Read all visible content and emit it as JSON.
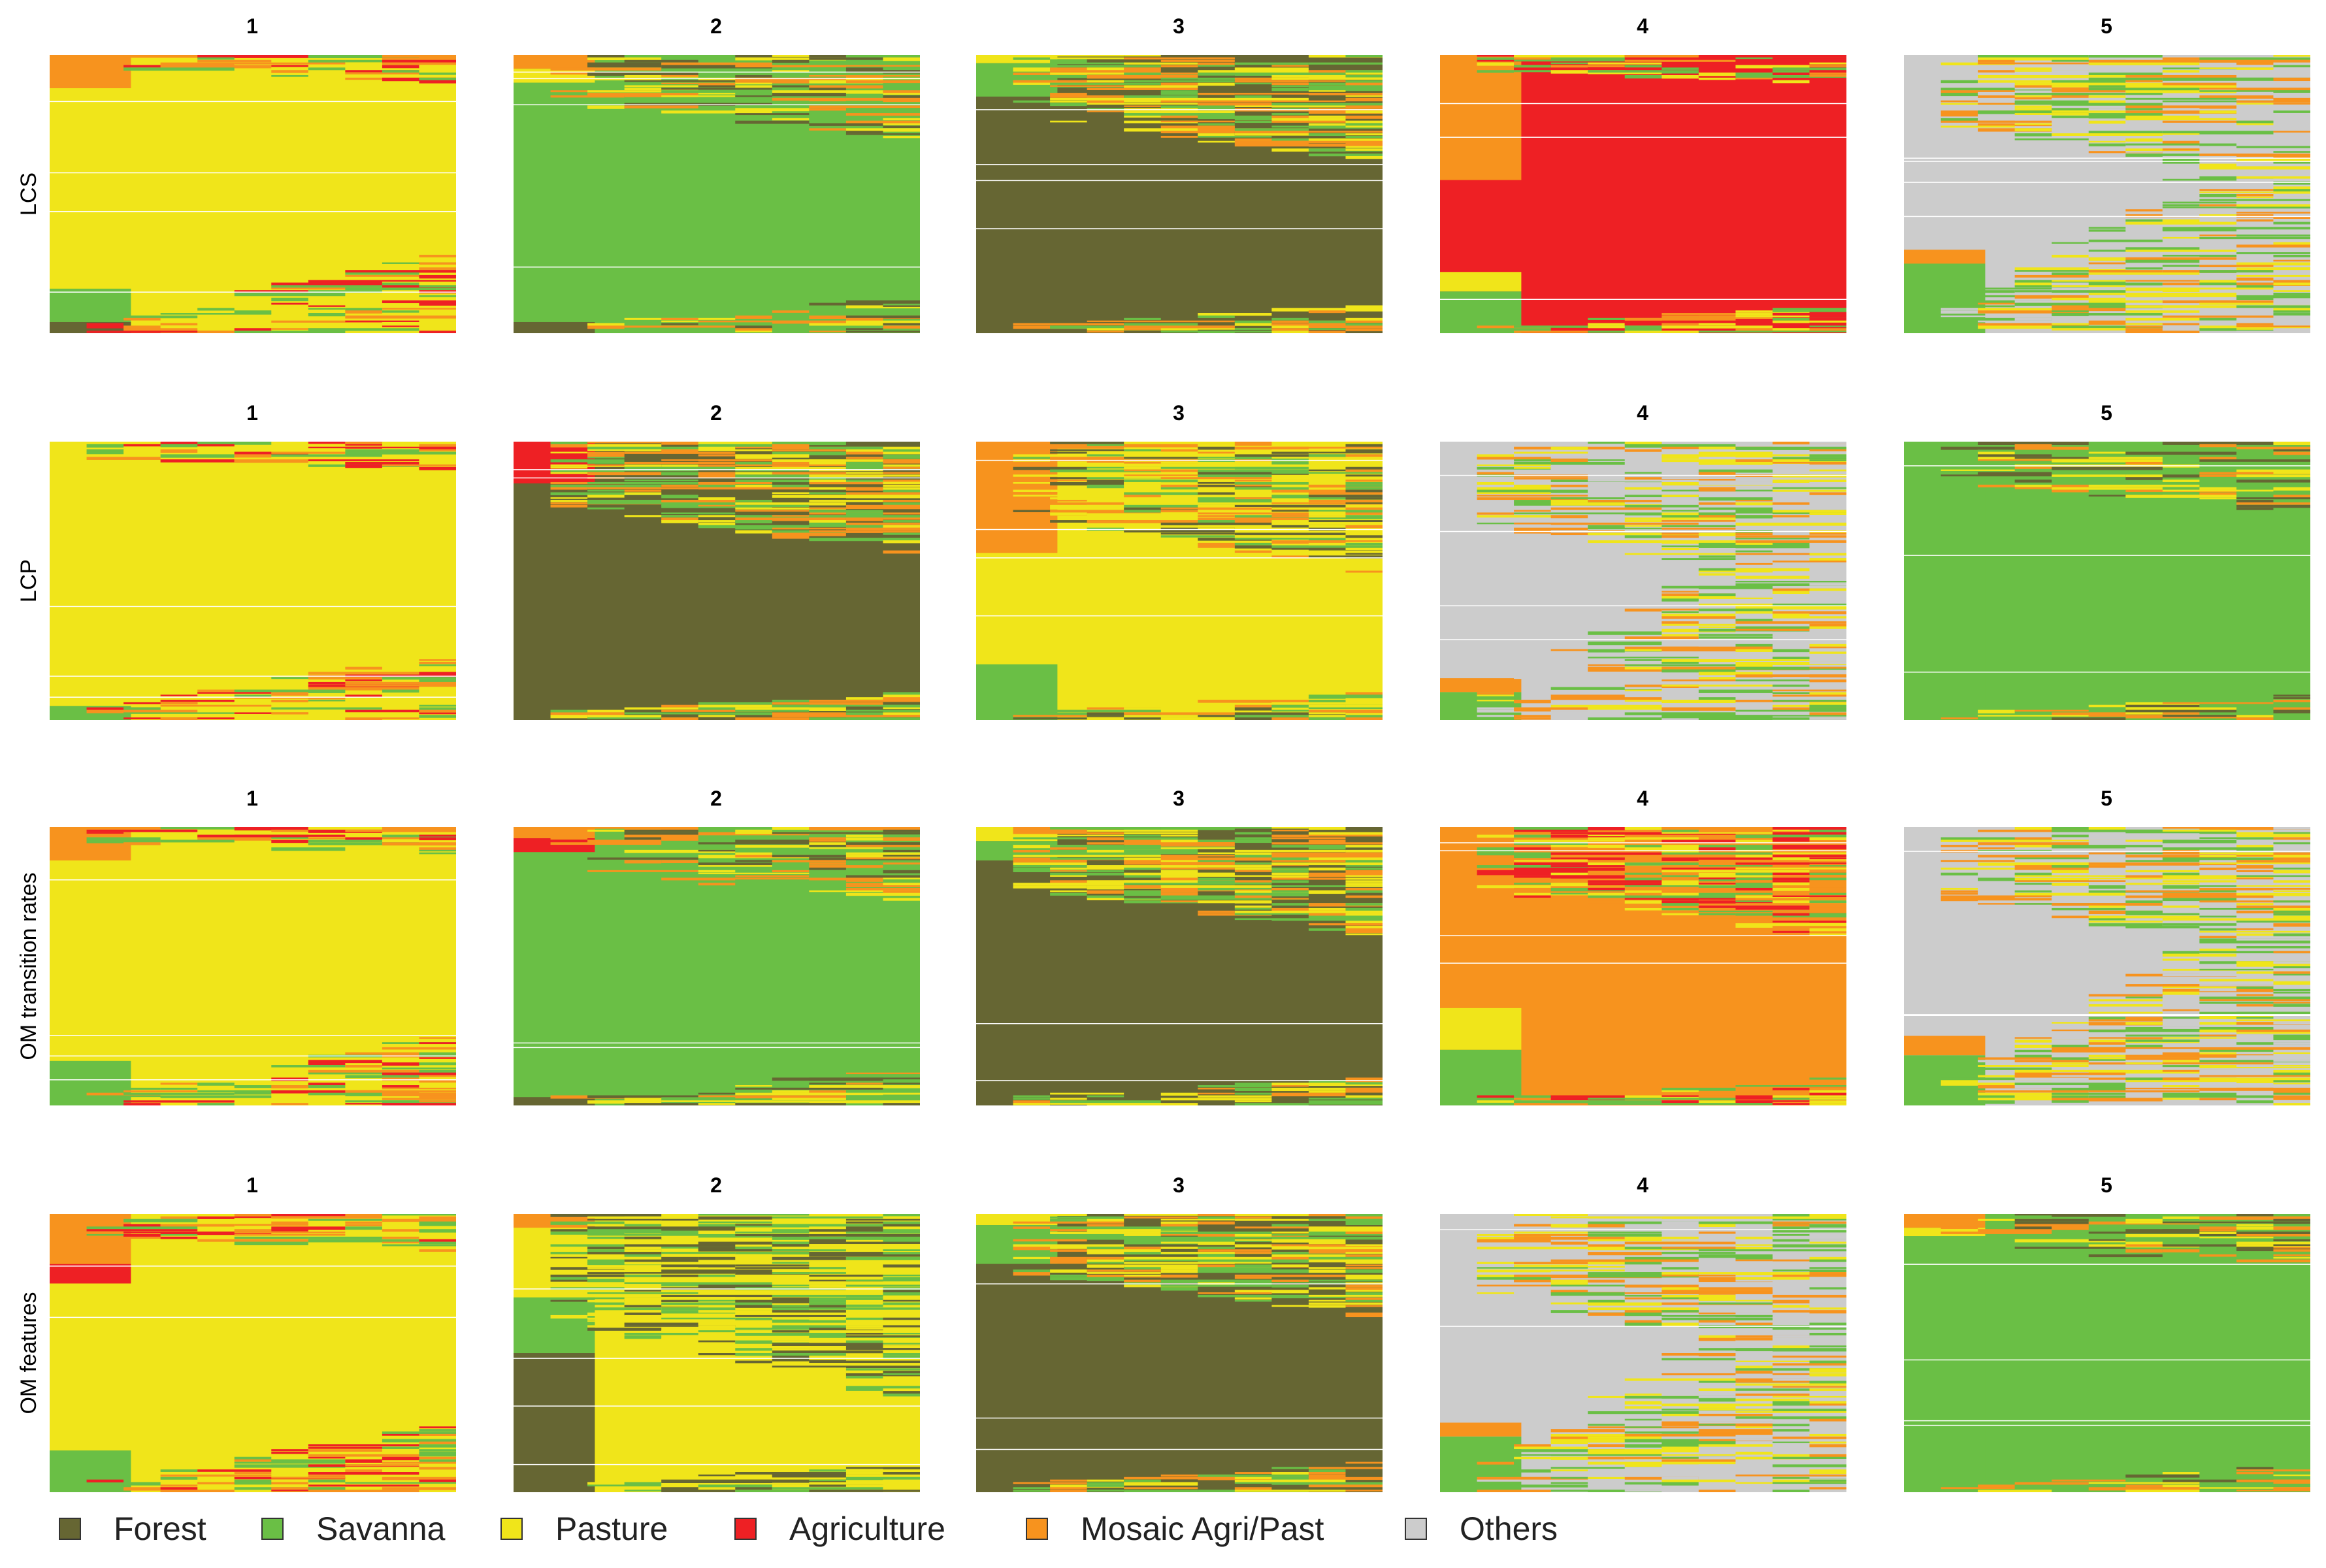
{
  "chart_data": {
    "type": "heatmap",
    "description_kind": "sequence index plots (state sequences per trajectory, sorted)",
    "states": [
      "Forest",
      "Savanna",
      "Pasture",
      "Agriculture",
      "Mosaic Agri/Past",
      "Others"
    ],
    "colors": {
      "Forest": "#666633",
      "Savanna": "#6abf45",
      "Pasture": "#f0e51a",
      "Agriculture": "#ee2024",
      "Mosaic Agri/Past": "#f7931e",
      "Others": "#cccccc"
    },
    "time_steps": 11,
    "rows": [
      {
        "label": "LCS",
        "clusters": [
          {
            "title": "1",
            "dominant": "Pasture",
            "start_states": [
              [
                "Mosaic Agri/Past",
                0.12
              ],
              [
                "Pasture",
                0.72
              ],
              [
                "Savanna",
                0.12
              ],
              [
                "Forest",
                0.04
              ]
            ],
            "noise_states": [
              "Savanna",
              "Mosaic Agri/Past",
              "Agriculture"
            ],
            "change_top": 0.14,
            "change_bottom": 0.8,
            "noise_density": 0.35
          },
          {
            "title": "2",
            "dominant": "Savanna",
            "start_states": [
              [
                "Mosaic Agri/Past",
                0.05
              ],
              [
                "Pasture",
                0.05
              ],
              [
                "Savanna",
                0.86
              ],
              [
                "Forest",
                0.04
              ]
            ],
            "noise_states": [
              "Pasture",
              "Mosaic Agri/Past",
              "Forest"
            ],
            "change_top": 0.45,
            "change_bottom": 0.97,
            "noise_density": 0.3
          },
          {
            "title": "3",
            "dominant": "Forest",
            "start_states": [
              [
                "Pasture",
                0.03
              ],
              [
                "Savanna",
                0.12
              ],
              [
                "Forest",
                0.85
              ]
            ],
            "noise_states": [
              "Savanna",
              "Pasture",
              "Mosaic Agri/Past"
            ],
            "change_top": 0.58,
            "change_bottom": 0.99,
            "noise_density": 0.5
          },
          {
            "title": "4",
            "dominant": "Agriculture",
            "start_states": [
              [
                "Mosaic Agri/Past",
                0.45
              ],
              [
                "Agriculture",
                0.33
              ],
              [
                "Pasture",
                0.07
              ],
              [
                "Savanna",
                0.15
              ]
            ],
            "noise_states": [
              "Agriculture",
              "Mosaic Agri/Past",
              "Pasture",
              "Savanna"
            ],
            "change_top": 0.15,
            "change_bottom": 1.0,
            "noise_density": 0.55
          },
          {
            "title": "5",
            "dominant": "Others",
            "start_states": [
              [
                "Others",
                0.7
              ],
              [
                "Mosaic Agri/Past",
                0.05
              ],
              [
                "Savanna",
                0.25
              ]
            ],
            "noise_states": [
              "Savanna",
              "Pasture",
              "Others",
              "Mosaic Agri/Past"
            ],
            "change_top": 0.7,
            "change_bottom": 0.25,
            "noise_density": 0.45
          }
        ]
      },
      {
        "label": "LCP",
        "clusters": [
          {
            "title": "1",
            "dominant": "Pasture",
            "start_states": [
              [
                "Pasture",
                0.95
              ],
              [
                "Savanna",
                0.05
              ]
            ],
            "noise_states": [
              "Savanna",
              "Mosaic Agri/Past",
              "Agriculture"
            ],
            "change_top": 0.15,
            "change_bottom": 0.85,
            "noise_density": 0.35
          },
          {
            "title": "2",
            "dominant": "Forest",
            "start_states": [
              [
                "Agriculture",
                0.15
              ],
              [
                "Forest",
                0.85
              ]
            ],
            "noise_states": [
              "Savanna",
              "Pasture",
              "Mosaic Agri/Past"
            ],
            "change_top": 0.6,
            "change_bottom": 1.0,
            "noise_density": 0.55
          },
          {
            "title": "3",
            "dominant": "Pasture",
            "start_states": [
              [
                "Mosaic Agri/Past",
                0.4
              ],
              [
                "Pasture",
                0.4
              ],
              [
                "Savanna",
                0.2
              ]
            ],
            "noise_states": [
              "Savanna",
              "Pasture",
              "Mosaic Agri/Past",
              "Forest"
            ],
            "change_top": 0.7,
            "change_bottom": 1.0,
            "noise_density": 0.55
          },
          {
            "title": "4",
            "dominant": "Others",
            "start_states": [
              [
                "Others",
                0.85
              ],
              [
                "Mosaic Agri/Past",
                0.05
              ],
              [
                "Savanna",
                0.1
              ]
            ],
            "noise_states": [
              "Savanna",
              "Pasture",
              "Others",
              "Mosaic Agri/Past"
            ],
            "change_top": 0.8,
            "change_bottom": 0.2,
            "noise_density": 0.4
          },
          {
            "title": "5",
            "dominant": "Savanna",
            "start_states": [
              [
                "Savanna",
                1.0
              ]
            ],
            "noise_states": [
              "Pasture",
              "Mosaic Agri/Past",
              "Forest"
            ],
            "change_top": 0.38,
            "change_bottom": 1.0,
            "noise_density": 0.3
          }
        ]
      },
      {
        "label": "OM transition rates",
        "clusters": [
          {
            "title": "1",
            "dominant": "Pasture",
            "start_states": [
              [
                "Mosaic Agri/Past",
                0.12
              ],
              [
                "Pasture",
                0.72
              ],
              [
                "Savanna",
                0.16
              ]
            ],
            "noise_states": [
              "Savanna",
              "Mosaic Agri/Past",
              "Agriculture"
            ],
            "change_top": 0.14,
            "change_bottom": 0.82,
            "noise_density": 0.35
          },
          {
            "title": "2",
            "dominant": "Savanna",
            "start_states": [
              [
                "Mosaic Agri/Past",
                0.04
              ],
              [
                "Agriculture",
                0.05
              ],
              [
                "Savanna",
                0.88
              ],
              [
                "Forest",
                0.03
              ]
            ],
            "noise_states": [
              "Pasture",
              "Mosaic Agri/Past",
              "Forest"
            ],
            "change_top": 0.4,
            "change_bottom": 0.97,
            "noise_density": 0.3
          },
          {
            "title": "3",
            "dominant": "Forest",
            "start_states": [
              [
                "Pasture",
                0.05
              ],
              [
                "Savanna",
                0.07
              ],
              [
                "Forest",
                0.88
              ]
            ],
            "noise_states": [
              "Savanna",
              "Pasture",
              "Mosaic Agri/Past"
            ],
            "change_top": 0.58,
            "change_bottom": 0.99,
            "noise_density": 0.55
          },
          {
            "title": "4",
            "dominant": "Mosaic Agri/Past",
            "start_states": [
              [
                "Mosaic Agri/Past",
                0.65
              ],
              [
                "Pasture",
                0.15
              ],
              [
                "Savanna",
                0.2
              ]
            ],
            "noise_states": [
              "Savanna",
              "Pasture",
              "Mosaic Agri/Past",
              "Agriculture"
            ],
            "change_top": 0.6,
            "change_bottom": 1.0,
            "noise_density": 0.55
          },
          {
            "title": "5",
            "dominant": "Others",
            "start_states": [
              [
                "Others",
                0.75
              ],
              [
                "Mosaic Agri/Past",
                0.07
              ],
              [
                "Savanna",
                0.18
              ]
            ],
            "noise_states": [
              "Savanna",
              "Pasture",
              "Others",
              "Mosaic Agri/Past"
            ],
            "change_top": 0.68,
            "change_bottom": 0.25,
            "noise_density": 0.45
          }
        ]
      },
      {
        "label": "OM features",
        "clusters": [
          {
            "title": "1",
            "dominant": "Pasture",
            "start_states": [
              [
                "Mosaic Agri/Past",
                0.18
              ],
              [
                "Agriculture",
                0.07
              ],
              [
                "Pasture",
                0.6
              ],
              [
                "Savanna",
                0.15
              ]
            ],
            "noise_states": [
              "Savanna",
              "Mosaic Agri/Past",
              "Agriculture"
            ],
            "change_top": 0.2,
            "change_bottom": 0.85,
            "noise_density": 0.35
          },
          {
            "title": "2",
            "dominant": "Pasture",
            "start_states": [
              [
                "Mosaic Agri/Past",
                0.05
              ],
              [
                "Pasture",
                0.25
              ],
              [
                "Savanna",
                0.2
              ],
              [
                "Forest",
                0.5
              ]
            ],
            "noise_states": [
              "Savanna",
              "Pasture",
              "Forest"
            ],
            "change_top": 1.0,
            "change_bottom": 1.0,
            "noise_density": 0.5
          },
          {
            "title": "3",
            "dominant": "Forest",
            "start_states": [
              [
                "Pasture",
                0.04
              ],
              [
                "Savanna",
                0.14
              ],
              [
                "Forest",
                0.82
              ]
            ],
            "noise_states": [
              "Savanna",
              "Pasture",
              "Mosaic Agri/Past"
            ],
            "change_top": 0.55,
            "change_bottom": 0.99,
            "noise_density": 0.55
          },
          {
            "title": "4",
            "dominant": "Others",
            "start_states": [
              [
                "Others",
                0.75
              ],
              [
                "Mosaic Agri/Past",
                0.05
              ],
              [
                "Savanna",
                0.2
              ]
            ],
            "noise_states": [
              "Savanna",
              "Pasture",
              "Others",
              "Mosaic Agri/Past"
            ],
            "change_top": 0.8,
            "change_bottom": 0.2,
            "noise_density": 0.45
          },
          {
            "title": "5",
            "dominant": "Savanna",
            "start_states": [
              [
                "Mosaic Agri/Past",
                0.05
              ],
              [
                "Pasture",
                0.03
              ],
              [
                "Savanna",
                0.92
              ]
            ],
            "noise_states": [
              "Pasture",
              "Mosaic Agri/Past",
              "Forest"
            ],
            "change_top": 0.3,
            "change_bottom": 1.0,
            "noise_density": 0.3
          }
        ]
      }
    ],
    "legend": [
      {
        "label": "Forest",
        "color": "#666633"
      },
      {
        "label": "Savanna",
        "color": "#6abf45"
      },
      {
        "label": "Pasture",
        "color": "#f0e51a"
      },
      {
        "label": "Agriculture",
        "color": "#ee2024"
      },
      {
        "label": "Mosaic Agri/Past",
        "color": "#f7931e"
      },
      {
        "label": "Others",
        "color": "#cccccc"
      }
    ],
    "legend_placement": "bottom"
  }
}
